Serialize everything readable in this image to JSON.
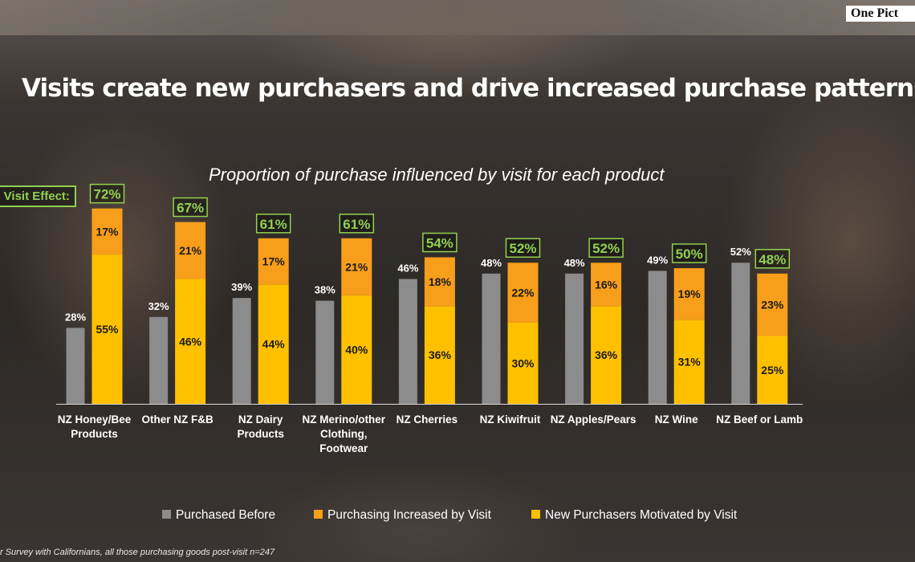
{
  "header": {
    "brand": "One Pict",
    "title": "Visits create new purchasers and drive increased purchase patterns"
  },
  "total_visit_label": "al Visit Effect:",
  "footnote": "r Survey with Californians, all those purchasing goods post-visit  n=247",
  "colors": {
    "purchased_before": "#8c8c8c",
    "increased": "#f79e1b",
    "new": "#ffc000",
    "highlight": "#92d050",
    "text": "#ffffff"
  },
  "chart_data": {
    "type": "bar",
    "title": "Proportion of purchase influenced by visit for each product",
    "categories": [
      [
        "NZ Honey/Bee",
        "Products"
      ],
      [
        "Other NZ F&B"
      ],
      [
        "NZ Dairy",
        "Products"
      ],
      [
        "NZ Merino/other",
        "Clothing,",
        "Footwear"
      ],
      [
        "NZ Cherries"
      ],
      [
        "NZ Kiwifruit"
      ],
      [
        "NZ Apples/Pears"
      ],
      [
        "NZ Wine"
      ],
      [
        "NZ Beef or Lamb"
      ]
    ],
    "series": [
      {
        "name": "Purchased Before",
        "values": [
          28,
          32,
          39,
          38,
          46,
          48,
          48,
          49,
          52
        ]
      },
      {
        "name": "Purchasing Increased by Visit",
        "values": [
          17,
          21,
          17,
          21,
          18,
          22,
          16,
          19,
          23
        ]
      },
      {
        "name": "New Purchasers Motivated by Visit",
        "values": [
          55,
          46,
          44,
          40,
          36,
          30,
          36,
          31,
          25
        ]
      }
    ],
    "total_visit_effect": [
      72,
      67,
      61,
      61,
      54,
      52,
      52,
      50,
      48
    ],
    "value_suffix": "%",
    "legend_position": "bottom",
    "grid": false
  }
}
